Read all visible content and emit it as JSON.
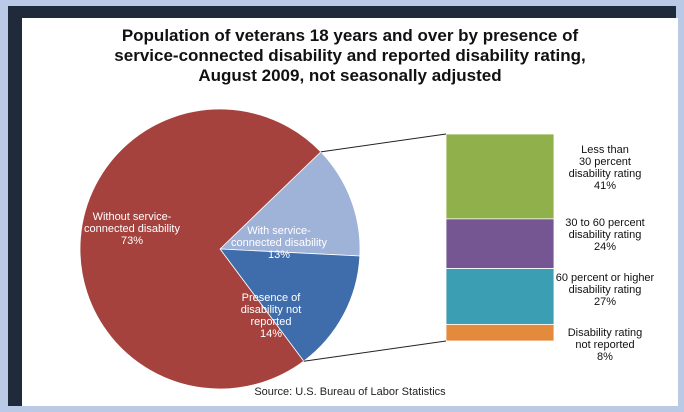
{
  "colors": {
    "page_background": "#b9c9e6",
    "frame": "#1f2a3a",
    "chart_background": "#ffffff"
  },
  "chart_data": {
    "type": "pie",
    "title_lines": [
      "Population of veterans 18 years and over by presence of",
      "service-connected disability and reported disability rating,",
      "August 2009, not seasonally adjusted"
    ],
    "source": "Source: U.S. Bureau of Labor Statistics",
    "pie": {
      "slices": [
        {
          "label_lines": [
            "Without service-",
            "connected disability",
            "73%"
          ],
          "value": 73,
          "color": "#a6423e",
          "label_color": "#ffffff"
        },
        {
          "label_lines": [
            "With service-",
            "connected disability",
            "13%"
          ],
          "value": 13,
          "color": "#9fb2d8",
          "label_color": "#ffffff"
        },
        {
          "label_lines": [
            "Presence of",
            "disability not",
            "reported",
            "14%"
          ],
          "value": 14,
          "color": "#3f6cab",
          "label_color": "#ffffff"
        }
      ]
    },
    "breakdown": {
      "of_slice": "With service-connected disability",
      "type": "stacked-bar",
      "segments": [
        {
          "label_lines": [
            "Less than",
            "30 percent",
            "disability rating",
            "41%"
          ],
          "value": 41,
          "color": "#8fb04a"
        },
        {
          "label_lines": [
            "30 to 60 percent",
            "disability rating",
            "24%"
          ],
          "value": 24,
          "color": "#765692"
        },
        {
          "label_lines": [
            "60 percent or higher",
            "disability rating",
            "27%"
          ],
          "value": 27,
          "color": "#3c9eb2"
        },
        {
          "label_lines": [
            "Disability rating",
            "not reported",
            "8%"
          ],
          "value": 8,
          "color": "#e38a3d"
        }
      ]
    }
  }
}
